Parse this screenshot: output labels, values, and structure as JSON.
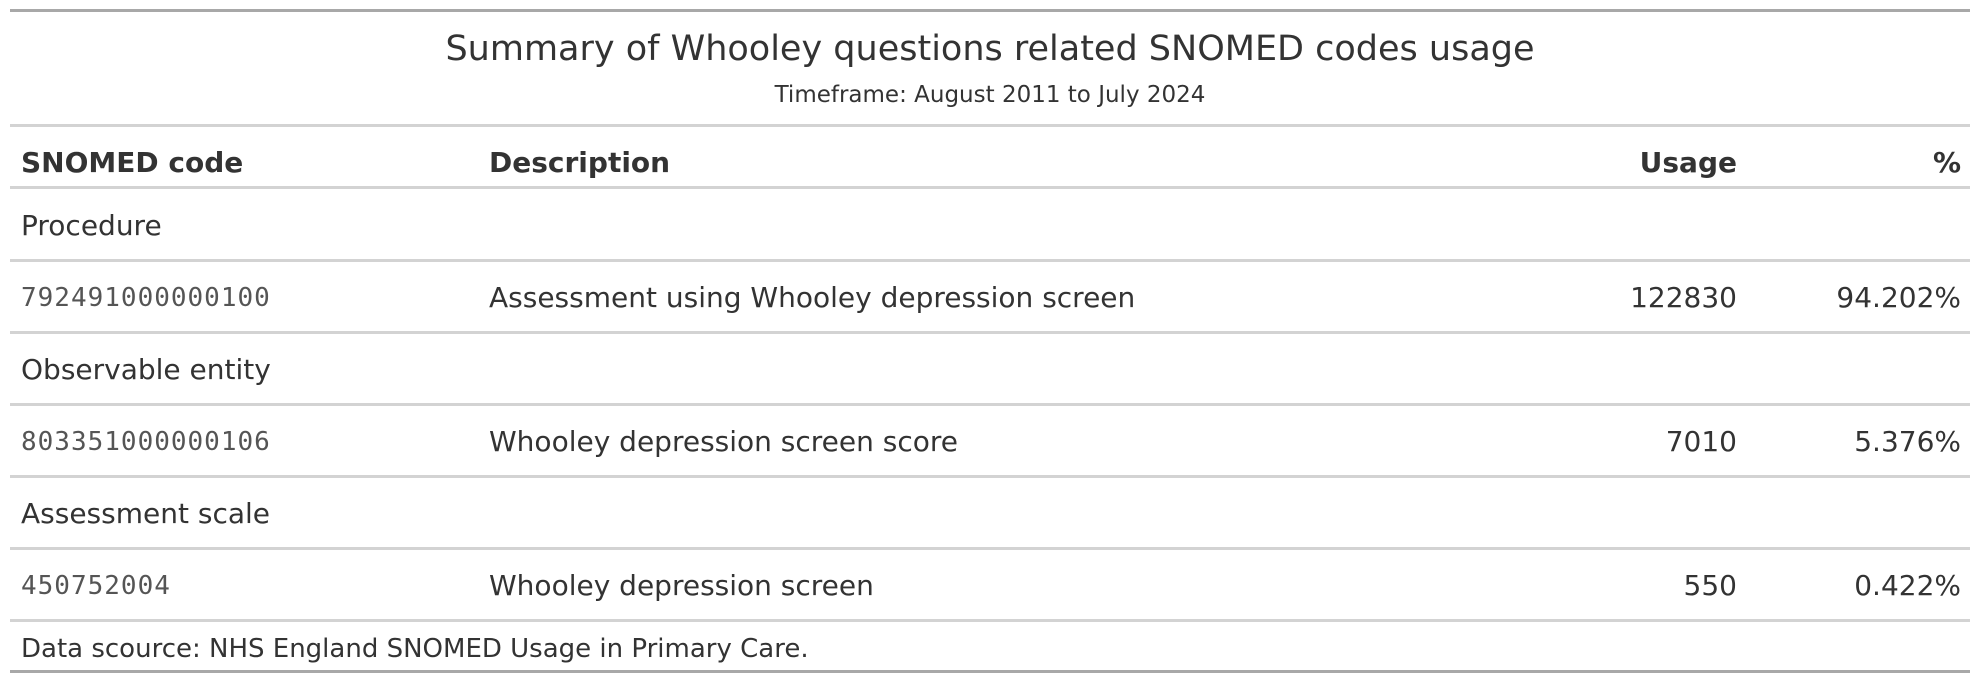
{
  "table": {
    "title": "Summary of Whooley questions related SNOMED codes usage",
    "subtitle": "Timeframe: August 2011 to July 2024",
    "columns": [
      "SNOMED code",
      "Description",
      "Usage",
      "%"
    ],
    "groups": [
      {
        "label": "Procedure",
        "rows": [
          {
            "code": "792491000000100",
            "description": "Assessment using Whooley depression screen",
            "usage": "122830",
            "percent": "94.202%"
          }
        ]
      },
      {
        "label": "Observable entity",
        "rows": [
          {
            "code": "803351000000106",
            "description": "Whooley depression screen score",
            "usage": "7010",
            "percent": "5.376%"
          }
        ]
      },
      {
        "label": "Assessment scale",
        "rows": [
          {
            "code": "450752004",
            "description": "Whooley depression screen",
            "usage": "550",
            "percent": "0.422%"
          }
        ]
      }
    ],
    "source_note": "Data scource: NHS England SNOMED Usage in Primary Care."
  }
}
